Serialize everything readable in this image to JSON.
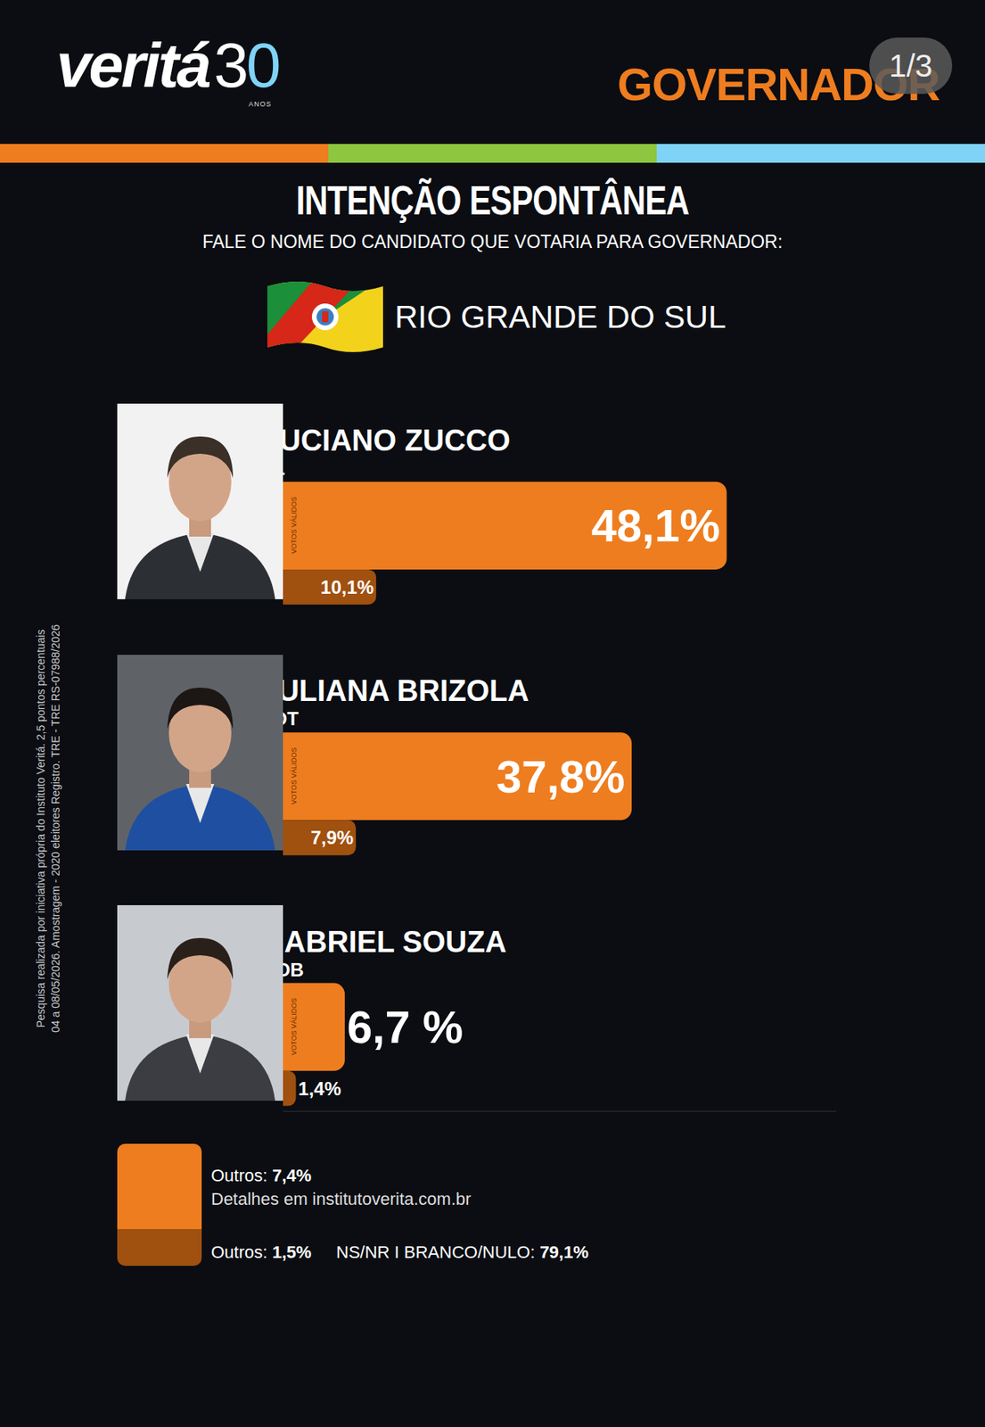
{
  "header": {
    "logo": "veritá",
    "logo_badge": "30",
    "logo_caption": "ANOS",
    "section": "GOVERNADOR",
    "page": "1/3"
  },
  "title": "INTENÇÃO ESPONTÂNEA",
  "subtitle": "FALE O NOME DO CANDIDATO QUE VOTARIA PARA GOVERNADOR:",
  "region": "RIO GRANDE DO SUL",
  "chart_data": {
    "type": "bar",
    "orientation": "horizontal",
    "categories": [
      "LUCIANO ZUCCO",
      "JULIANA BRIZOLA",
      "GABRIEL SOUZA"
    ],
    "parties": [
      "PL",
      "PDT",
      "MDB"
    ],
    "series": [
      {
        "name": "VOTOS VÁLIDOS",
        "color": "#ee7d1f",
        "values": [
          48.1,
          37.8,
          6.7
        ],
        "value_labels": [
          "48,1%",
          "37,8%",
          "6,7 %"
        ]
      },
      {
        "color": "#a0500f",
        "values": [
          10.1,
          7.9,
          1.4
        ],
        "value_labels": [
          "10,1%",
          "7,9%",
          "1,4%"
        ]
      }
    ],
    "xlim": [
      0,
      60
    ],
    "xticks": [],
    "tick_labels": false,
    "data_labels": true,
    "grid": false
  },
  "others": {
    "valid": {
      "label": "Outros:",
      "value": "7,4%"
    },
    "details": "Detalhes em institutoverita.com.br",
    "total": {
      "label": "Outros:",
      "value": "1,5%"
    },
    "blank": {
      "label": "NS/NR  I  BRANCO/NULO:",
      "value": "79,1%"
    }
  },
  "methodology": [
    "Pesquisa realizada por iniciativa própria do Instituto Veritá. 2,5 pontos percentuais",
    "04 a 08/05/2026. Amostragem - 2020 eleitores Registro. TRE - TRE RS-07988/2026"
  ]
}
